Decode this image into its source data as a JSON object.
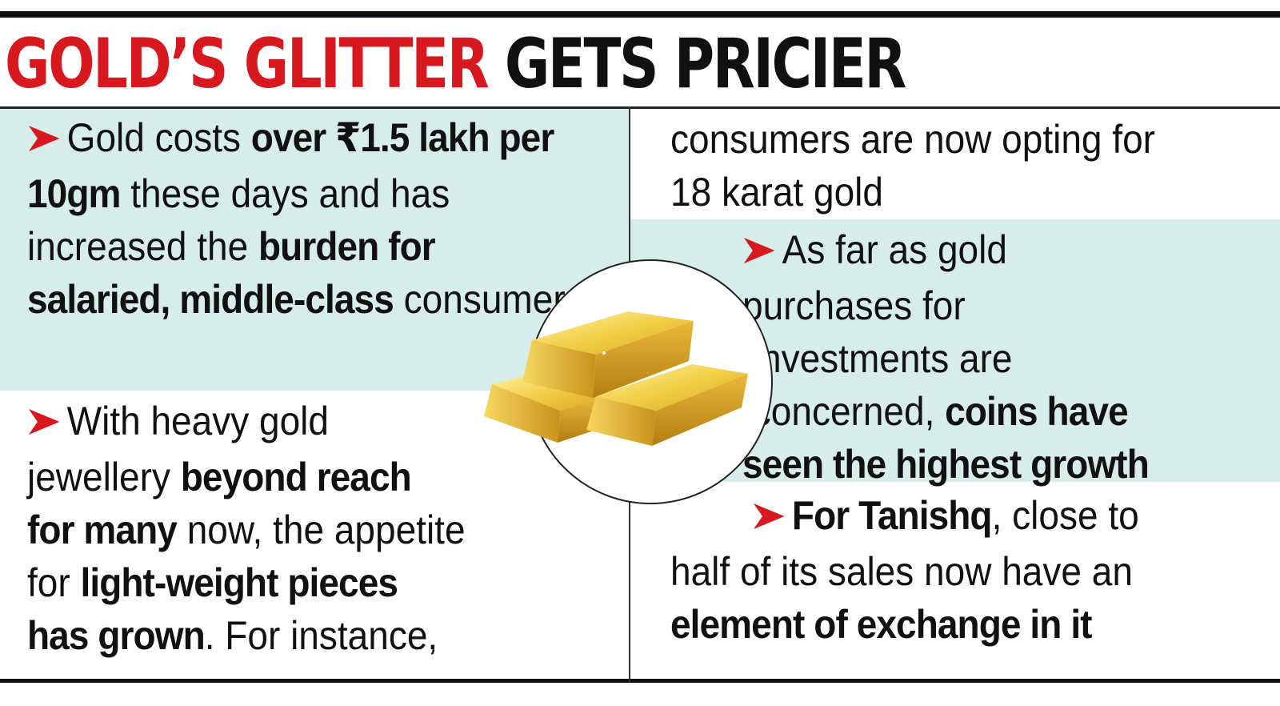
{
  "headline": {
    "part_red": "GOLD’S GLITTER",
    "part_black": "GETS PRICIER"
  },
  "colors": {
    "accent_red": "#d7191f",
    "shade_teal": "#d7edea",
    "gold": "#e6b830"
  },
  "icons": {
    "bullet": "red-arrow-bullet-icon",
    "illustration": "gold-bars-icon"
  },
  "points": [
    {
      "segments": [
        {
          "text": "Gold costs ",
          "bold": false
        },
        {
          "text": "over ₹1.5 lakh per 10gm",
          "bold": true
        },
        {
          "text": " these days and has increased the ",
          "bold": false
        },
        {
          "text": "burden for salaried, middle-class",
          "bold": true
        },
        {
          "text": " consumers",
          "bold": false
        }
      ]
    },
    {
      "segments": [
        {
          "text": "With heavy gold jewellery ",
          "bold": false
        },
        {
          "text": "beyond reach for many",
          "bold": true
        },
        {
          "text": " now, the appetite for ",
          "bold": false
        },
        {
          "text": "light-weight pieces has grown",
          "bold": true
        },
        {
          "text": ". For instance, consumers are now opting for 18 karat gold",
          "bold": false
        }
      ]
    },
    {
      "segments": [
        {
          "text": "As far as gold purchases for investments are concerned, ",
          "bold": false
        },
        {
          "text": "coins have seen the highest growth",
          "bold": true
        }
      ]
    },
    {
      "segments": [
        {
          "text": "For Tanishq",
          "bold": true
        },
        {
          "text": ", close to half of its sales now have an ",
          "bold": false
        },
        {
          "text": "element of exchange in it",
          "bold": true
        }
      ]
    }
  ]
}
